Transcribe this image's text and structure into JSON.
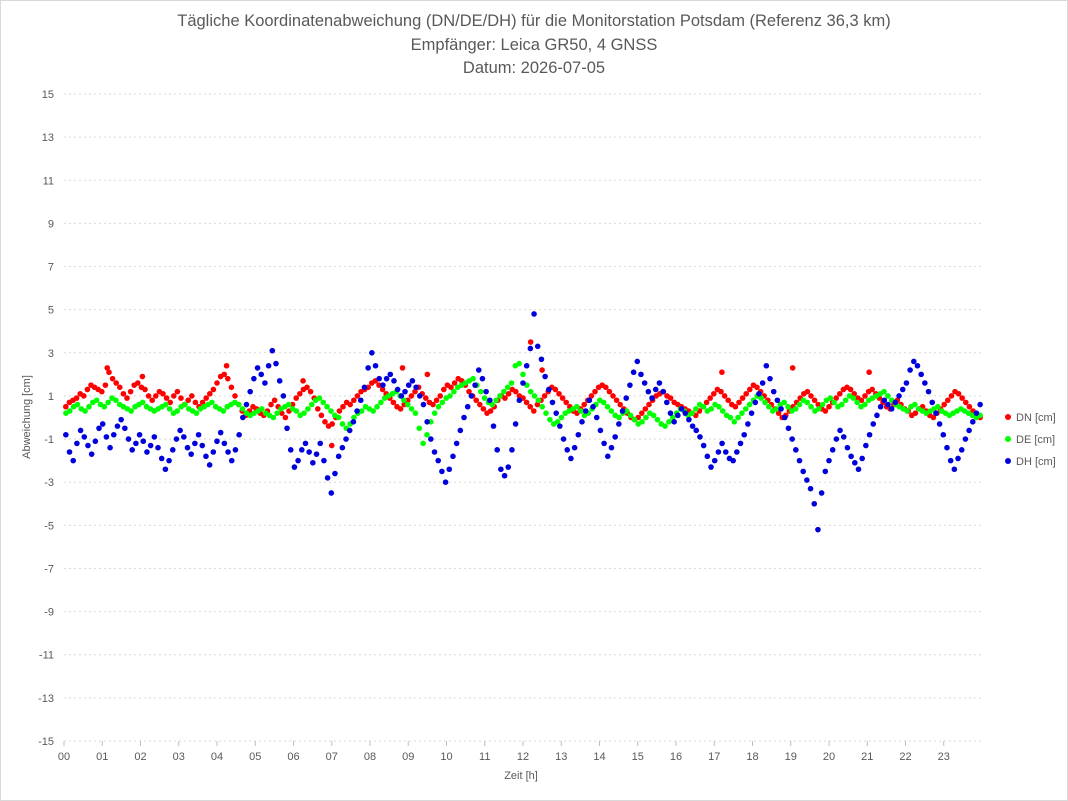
{
  "chart_data": {
    "type": "scatter",
    "title": "Tägliche Koordinatenabweichung (DN/DE/DH) für die Monitorstation Potsdam (Referenz 36,3 km)",
    "subtitle1": "Empfänger: Leica GR50, 4 GNSS",
    "subtitle2": "Datum: 2026-07-05",
    "xlabel": "Zeit [h]",
    "ylabel": "Abweichung [cm]",
    "xlim": [
      0,
      24
    ],
    "ylim": [
      -15,
      15
    ],
    "yticks": [
      -15,
      -13,
      -11,
      -9,
      -7,
      -5,
      -3,
      -1,
      1,
      3,
      5,
      7,
      9,
      11,
      13,
      15
    ],
    "xtick_labels": [
      "00",
      "01",
      "02",
      "03",
      "04",
      "05",
      "06",
      "07",
      "08",
      "09",
      "10",
      "11",
      "12",
      "13",
      "14",
      "15",
      "16",
      "17",
      "18",
      "19",
      "20",
      "21",
      "22",
      "23"
    ],
    "grid": "horizontal dotted",
    "legend_position": "right",
    "sample_interval_h": 0.0333,
    "series": [
      {
        "name": "DN [cm]",
        "color": "#ff0000",
        "x_start": 0,
        "values": [
          0.5,
          0.7,
          0.8,
          0.9,
          1.1,
          1.0,
          1.3,
          1.5,
          1.4,
          1.3,
          1.2,
          1.5,
          2.1,
          1.8,
          1.6,
          1.4,
          1.1,
          0.9,
          1.2,
          1.5,
          1.6,
          1.4,
          1.3,
          1.0,
          0.8,
          1.0,
          1.2,
          1.1,
          0.9,
          0.7,
          1.0,
          1.2,
          0.9,
          0.6,
          0.8,
          1.0,
          0.7,
          0.5,
          0.7,
          0.9,
          1.1,
          1.3,
          1.6,
          1.9,
          2.0,
          1.8,
          1.4,
          1.0,
          0.6,
          0.3,
          0.1,
          0.3,
          0.5,
          0.4,
          0.2,
          0.1,
          0.3,
          0.6,
          0.8,
          0.5,
          0.2,
          0.0,
          0.3,
          0.6,
          0.9,
          1.1,
          1.3,
          1.4,
          1.2,
          0.9,
          0.4,
          0.1,
          -0.2,
          -0.4,
          -0.3,
          0.0,
          0.3,
          0.5,
          0.7,
          0.6,
          0.8,
          1.0,
          1.2,
          1.3,
          1.4,
          1.6,
          1.7,
          1.5,
          1.3,
          1.1,
          0.9,
          0.7,
          0.5,
          0.4,
          0.6,
          0.8,
          1.0,
          1.2,
          1.4,
          1.1,
          0.9,
          0.7,
          0.6,
          0.8,
          1.0,
          1.3,
          1.5,
          1.4,
          1.6,
          1.8,
          1.7,
          1.5,
          1.2,
          1.0,
          0.8,
          0.6,
          0.4,
          0.2,
          0.3,
          0.5,
          0.8,
          1.0,
          0.9,
          1.1,
          1.3,
          1.2,
          1.0,
          0.9,
          0.7,
          0.5,
          0.3,
          0.6,
          0.8,
          1.0,
          1.2,
          1.4,
          1.3,
          1.1,
          0.9,
          0.7,
          0.5,
          0.3,
          0.2,
          0.4,
          0.6,
          0.8,
          1.0,
          1.2,
          1.4,
          1.5,
          1.4,
          1.2,
          1.0,
          0.8,
          0.6,
          0.4,
          0.2,
          0.0,
          -0.1,
          0.0,
          0.2,
          0.4,
          0.6,
          0.8,
          1.0,
          1.1,
          1.2,
          1.0,
          0.9,
          0.7,
          0.6,
          0.5,
          0.4,
          0.3,
          0.2,
          0.1,
          0.3,
          0.5,
          0.7,
          0.9,
          1.1,
          1.3,
          1.2,
          1.0,
          0.8,
          0.6,
          0.5,
          0.7,
          0.9,
          1.1,
          1.3,
          1.5,
          1.4,
          1.2,
          1.0,
          0.8,
          0.6,
          0.4,
          0.2,
          0.0,
          0.1,
          0.3,
          0.5,
          0.7,
          0.9,
          1.1,
          1.2,
          1.0,
          0.8,
          0.6,
          0.4,
          0.3,
          0.5,
          0.7,
          0.9,
          1.1,
          1.3,
          1.4,
          1.3,
          1.1,
          0.9,
          0.8,
          1.0,
          1.2,
          1.3,
          1.1,
          0.9,
          0.7,
          0.5,
          0.4,
          0.6,
          0.8,
          0.6,
          0.4,
          0.3,
          0.1,
          0.2,
          0.4,
          0.5,
          0.3,
          0.1,
          0.0,
          0.2,
          0.4,
          0.6,
          0.8,
          1.0,
          1.2,
          1.1,
          0.9,
          0.7,
          0.5,
          0.3,
          0.1,
          0.0
        ],
        "highlights": [
          {
            "x": 1.13,
            "y": 2.3
          },
          {
            "x": 2.05,
            "y": 1.9
          },
          {
            "x": 4.25,
            "y": 2.4
          },
          {
            "x": 6.25,
            "y": 1.7
          },
          {
            "x": 7.0,
            "y": -1.3
          },
          {
            "x": 8.85,
            "y": 2.3
          },
          {
            "x": 9.5,
            "y": 2.0
          },
          {
            "x": 12.2,
            "y": 3.5
          },
          {
            "x": 12.5,
            "y": 2.2
          },
          {
            "x": 17.2,
            "y": 2.1
          },
          {
            "x": 19.05,
            "y": 2.3
          },
          {
            "x": 21.05,
            "y": 2.1
          }
        ]
      },
      {
        "name": "DE [cm]",
        "color": "#00ff00",
        "x_start": 0,
        "values": [
          0.2,
          0.3,
          0.5,
          0.6,
          0.4,
          0.3,
          0.5,
          0.7,
          0.8,
          0.6,
          0.5,
          0.7,
          0.9,
          0.8,
          0.6,
          0.5,
          0.4,
          0.3,
          0.5,
          0.6,
          0.7,
          0.5,
          0.4,
          0.3,
          0.4,
          0.5,
          0.6,
          0.4,
          0.2,
          0.3,
          0.5,
          0.6,
          0.4,
          0.3,
          0.2,
          0.4,
          0.5,
          0.6,
          0.7,
          0.5,
          0.4,
          0.3,
          0.5,
          0.6,
          0.7,
          0.6,
          0.4,
          0.2,
          0.1,
          0.2,
          0.3,
          0.4,
          0.2,
          0.1,
          0.0,
          0.2,
          0.4,
          0.5,
          0.6,
          0.4,
          0.3,
          0.1,
          0.2,
          0.4,
          0.6,
          0.8,
          0.9,
          0.7,
          0.5,
          0.3,
          0.1,
          0.0,
          -0.3,
          -0.5,
          -0.3,
          0.0,
          0.2,
          0.3,
          0.5,
          0.4,
          0.3,
          0.5,
          0.7,
          0.9,
          1.0,
          1.1,
          1.2,
          1.0,
          0.8,
          0.6,
          0.4,
          0.2,
          -0.5,
          -1.2,
          -0.8,
          -0.2,
          0.2,
          0.5,
          0.7,
          0.9,
          1.0,
          1.2,
          1.4,
          1.5,
          1.6,
          1.7,
          1.8,
          1.5,
          1.2,
          0.9,
          0.7,
          0.6,
          0.8,
          1.0,
          1.2,
          1.4,
          1.6,
          2.4,
          2.5,
          2.0,
          1.5,
          1.2,
          1.0,
          0.8,
          0.5,
          0.2,
          -0.1,
          -0.3,
          -0.2,
          0.0,
          0.2,
          0.3,
          0.4,
          0.5,
          0.3,
          0.1,
          0.2,
          0.4,
          0.6,
          0.8,
          0.7,
          0.5,
          0.3,
          0.1,
          0.0,
          0.2,
          0.3,
          0.1,
          -0.1,
          -0.3,
          -0.2,
          0.0,
          0.2,
          0.1,
          -0.1,
          -0.3,
          -0.4,
          -0.2,
          0.0,
          0.2,
          0.4,
          0.3,
          0.1,
          0.2,
          0.4,
          0.6,
          0.5,
          0.3,
          0.4,
          0.6,
          0.5,
          0.3,
          0.1,
          0.0,
          -0.2,
          0.0,
          0.2,
          0.4,
          0.6,
          0.8,
          1.0,
          0.9,
          0.7,
          0.5,
          0.3,
          0.4,
          0.6,
          0.7,
          0.5,
          0.3,
          0.4,
          0.6,
          0.8,
          0.7,
          0.5,
          0.3,
          0.4,
          0.6,
          0.8,
          0.9,
          0.7,
          0.5,
          0.6,
          0.8,
          1.0,
          0.9,
          0.7,
          0.5,
          0.6,
          0.8,
          0.9,
          1.0,
          1.1,
          1.2,
          1.0,
          0.8,
          0.6,
          0.5,
          0.4,
          0.3,
          0.5,
          0.6,
          0.4,
          0.3,
          0.2,
          0.3,
          0.4,
          0.5,
          0.3,
          0.2,
          0.1,
          0.2,
          0.3,
          0.4,
          0.3,
          0.2,
          0.1,
          0.0,
          0.1
        ]
      },
      {
        "name": "DH [cm]",
        "color": "#0000dd",
        "x_start": 0,
        "values": [
          -0.8,
          -1.6,
          -2.0,
          -1.2,
          -0.6,
          -0.9,
          -1.3,
          -1.7,
          -1.1,
          -0.5,
          -0.3,
          -0.9,
          -1.4,
          -0.8,
          -0.4,
          -0.1,
          -0.5,
          -1.0,
          -1.5,
          -1.2,
          -0.8,
          -1.1,
          -1.6,
          -1.3,
          -0.9,
          -1.4,
          -1.9,
          -2.4,
          -2.0,
          -1.5,
          -1.0,
          -0.6,
          -0.9,
          -1.4,
          -1.7,
          -1.2,
          -0.8,
          -1.3,
          -1.8,
          -2.2,
          -1.6,
          -1.1,
          -0.7,
          -1.2,
          -1.6,
          -2.0,
          -1.5,
          -0.8,
          0.0,
          0.6,
          1.2,
          1.8,
          2.3,
          2.0,
          1.6,
          2.4,
          3.1,
          2.5,
          1.7,
          1.0,
          -0.5,
          -1.5,
          -2.3,
          -2.0,
          -1.5,
          -1.2,
          -1.6,
          -2.1,
          -1.7,
          -1.2,
          -2.0,
          -2.8,
          -3.5,
          -2.6,
          -1.8,
          -1.4,
          -1.0,
          -0.6,
          -0.2,
          0.3,
          0.8,
          1.4,
          2.3,
          3.0,
          2.4,
          1.8,
          1.5,
          1.8,
          2.0,
          1.7,
          1.3,
          1.0,
          1.2,
          1.5,
          1.7,
          1.4,
          1.0,
          0.6,
          -0.2,
          -1.0,
          -1.6,
          -2.0,
          -2.5,
          -3.0,
          -2.4,
          -1.8,
          -1.2,
          -0.6,
          0.0,
          0.5,
          1.0,
          1.5,
          2.2,
          1.8,
          1.2,
          0.8,
          -0.4,
          -1.5,
          -2.4,
          -2.7,
          -2.3,
          -1.5,
          -0.3,
          0.8,
          1.6,
          2.4,
          3.2,
          4.8,
          3.3,
          2.7,
          1.9,
          1.3,
          0.7,
          0.2,
          -0.4,
          -1.0,
          -1.5,
          -1.9,
          -1.4,
          -0.8,
          -0.2,
          0.3,
          0.8,
          0.5,
          0.0,
          -0.6,
          -1.2,
          -1.8,
          -1.4,
          -0.9,
          -0.3,
          0.3,
          0.9,
          1.5,
          2.1,
          2.6,
          2.0,
          1.6,
          1.2,
          0.9,
          1.3,
          1.6,
          1.2,
          0.7,
          0.2,
          -0.2,
          0.1,
          0.4,
          0.2,
          -0.1,
          -0.4,
          -0.6,
          -0.9,
          -1.3,
          -1.8,
          -2.3,
          -2.0,
          -1.6,
          -1.2,
          -1.6,
          -1.9,
          -2.0,
          -1.6,
          -1.2,
          -0.8,
          -0.3,
          0.2,
          0.7,
          1.1,
          1.6,
          2.4,
          1.8,
          1.2,
          0.8,
          0.4,
          0.0,
          -0.5,
          -1.0,
          -1.5,
          -2.0,
          -2.5,
          -2.9,
          -3.3,
          -4.0,
          -5.2,
          -3.5,
          -2.5,
          -2.0,
          -1.5,
          -1.0,
          -0.6,
          -0.9,
          -1.4,
          -1.8,
          -2.1,
          -2.4,
          -1.9,
          -1.3,
          -0.8,
          -0.3,
          0.1,
          0.5,
          0.8,
          0.6,
          0.4,
          0.7,
          1.0,
          1.3,
          1.6,
          2.2,
          2.6,
          2.4,
          2.0,
          1.6,
          1.2,
          0.7,
          0.2,
          -0.3,
          -0.8,
          -1.4,
          -2.0,
          -2.4,
          -1.9,
          -1.5,
          -1.0,
          -0.6,
          -0.2,
          0.2,
          0.6
        ]
      }
    ]
  }
}
